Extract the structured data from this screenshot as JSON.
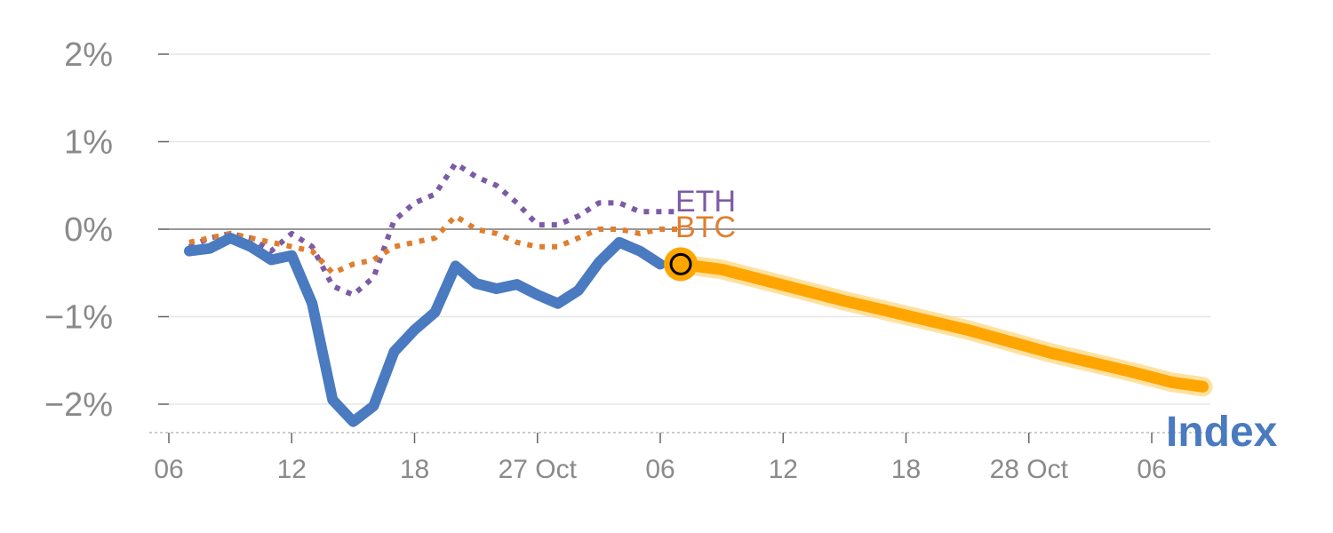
{
  "chart_data": {
    "type": "line",
    "title": "",
    "xlabel": "",
    "ylabel": "",
    "ylim": [
      -2.3,
      2.0
    ],
    "y_ticks": [
      {
        "value": 2,
        "label": "2%"
      },
      {
        "value": 1,
        "label": "1%"
      },
      {
        "value": 0,
        "label": "0%"
      },
      {
        "value": -1,
        "label": "−1%"
      },
      {
        "value": -2,
        "label": "−2%"
      }
    ],
    "x_range": [
      0,
      51
    ],
    "x_ticks": [
      {
        "value": 0,
        "label": "06"
      },
      {
        "value": 6,
        "label": "12"
      },
      {
        "value": 12,
        "label": "18"
      },
      {
        "value": 18,
        "label": "27 Oct"
      },
      {
        "value": 24,
        "label": "06"
      },
      {
        "value": 30,
        "label": "12"
      },
      {
        "value": 36,
        "label": "18"
      },
      {
        "value": 42,
        "label": "28 Oct"
      },
      {
        "value": 48,
        "label": "06"
      }
    ],
    "series": [
      {
        "name": "ETH",
        "label": "ETH",
        "color": "#7c5ba6",
        "style": "dotted",
        "x": [
          1,
          2,
          3,
          4,
          5,
          6,
          7,
          8,
          9,
          10,
          11,
          12,
          13,
          14,
          15,
          16,
          17,
          18,
          19,
          20,
          21,
          22,
          23,
          24,
          25
        ],
        "values": [
          -0.2,
          -0.1,
          -0.05,
          -0.1,
          -0.25,
          -0.05,
          -0.2,
          -0.65,
          -0.75,
          -0.55,
          0.1,
          0.3,
          0.4,
          0.75,
          0.6,
          0.5,
          0.3,
          0.05,
          0.05,
          0.15,
          0.3,
          0.3,
          0.2,
          0.2,
          0.2
        ]
      },
      {
        "name": "BTC",
        "label": "BTC",
        "color": "#e07e2e",
        "style": "dotted",
        "x": [
          1,
          2,
          3,
          4,
          5,
          6,
          7,
          8,
          9,
          10,
          11,
          12,
          13,
          14,
          15,
          16,
          17,
          18,
          19,
          20,
          21,
          22,
          23,
          24,
          25
        ],
        "values": [
          -0.15,
          -0.1,
          -0.05,
          -0.1,
          -0.15,
          -0.2,
          -0.25,
          -0.5,
          -0.4,
          -0.35,
          -0.2,
          -0.15,
          -0.1,
          0.15,
          0.0,
          -0.05,
          -0.15,
          -0.2,
          -0.2,
          -0.1,
          0.0,
          0.0,
          -0.05,
          0.0,
          0.0
        ]
      },
      {
        "name": "Index",
        "label": "Index",
        "color": "#4a7abf",
        "style": "solid",
        "x": [
          1,
          2,
          3,
          4,
          5,
          6,
          7,
          8,
          9,
          10,
          11,
          12,
          13,
          14,
          15,
          16,
          17,
          18,
          19,
          20,
          21,
          22,
          23,
          24
        ],
        "values": [
          -0.25,
          -0.22,
          -0.1,
          -0.2,
          -0.35,
          -0.3,
          -0.85,
          -1.95,
          -2.2,
          -2.02,
          -1.4,
          -1.15,
          -0.95,
          -0.42,
          -0.62,
          -0.68,
          -0.63,
          -0.75,
          -0.85,
          -0.7,
          -0.38,
          -0.15,
          -0.25,
          -0.4
        ]
      },
      {
        "name": "Index forecast",
        "label": "",
        "color": "#ffa500",
        "style": "thick",
        "x": [
          25,
          27,
          29,
          31,
          33,
          35,
          37,
          39,
          41,
          43,
          45,
          47,
          49,
          50.5
        ],
        "values": [
          -0.4,
          -0.46,
          -0.58,
          -0.7,
          -0.82,
          -0.93,
          -1.04,
          -1.15,
          -1.28,
          -1.41,
          -1.52,
          -1.63,
          -1.75,
          -1.8
        ]
      }
    ],
    "marker": {
      "x": 25,
      "value": -0.4,
      "color": "#ffa500"
    },
    "zero_line": true,
    "grid": true
  }
}
